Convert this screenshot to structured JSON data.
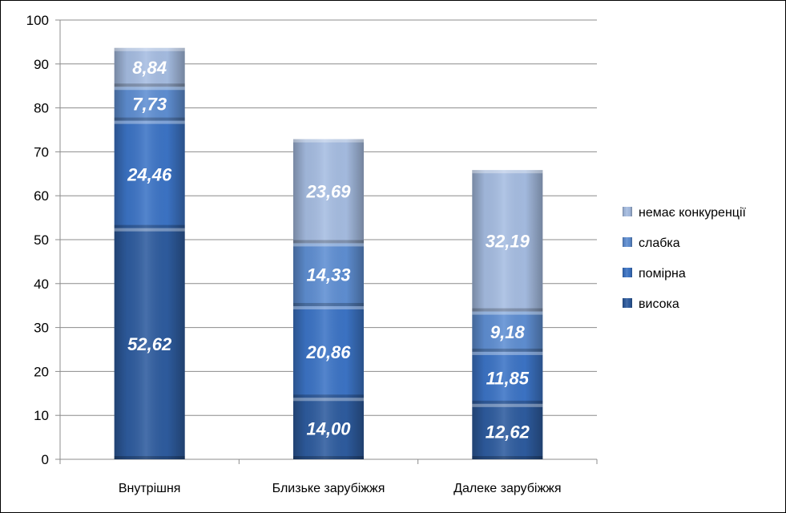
{
  "chart_data": {
    "type": "bar",
    "stacked": true,
    "categories": [
      "Внутрішня",
      "Близьке зарубіжжя",
      "Далеке зарубіжжя"
    ],
    "series": [
      {
        "name": "висока",
        "values": [
          52.62,
          14.0,
          12.62
        ],
        "labels": [
          "52,62",
          "14,00",
          "12,62"
        ],
        "color": "#2e5c9f"
      },
      {
        "name": "помірна",
        "values": [
          24.46,
          20.86,
          11.85
        ],
        "labels": [
          "24,46",
          "20,86",
          "11,85"
        ],
        "color": "#3c74c6"
      },
      {
        "name": "слабка",
        "values": [
          7.73,
          14.33,
          9.18
        ],
        "labels": [
          "7,73",
          "14,33",
          "9,18"
        ],
        "color": "#5f8fd3"
      },
      {
        "name": "немає конкуренції",
        "values": [
          8.84,
          23.69,
          32.19
        ],
        "labels": [
          "8,84",
          "23,69",
          "32,19"
        ],
        "color": "#a6bde2"
      }
    ],
    "ylim": [
      0,
      100
    ],
    "yticks": [
      0,
      10,
      20,
      30,
      40,
      50,
      60,
      70,
      80,
      90,
      100
    ],
    "grid": true,
    "legend_position": "right"
  }
}
